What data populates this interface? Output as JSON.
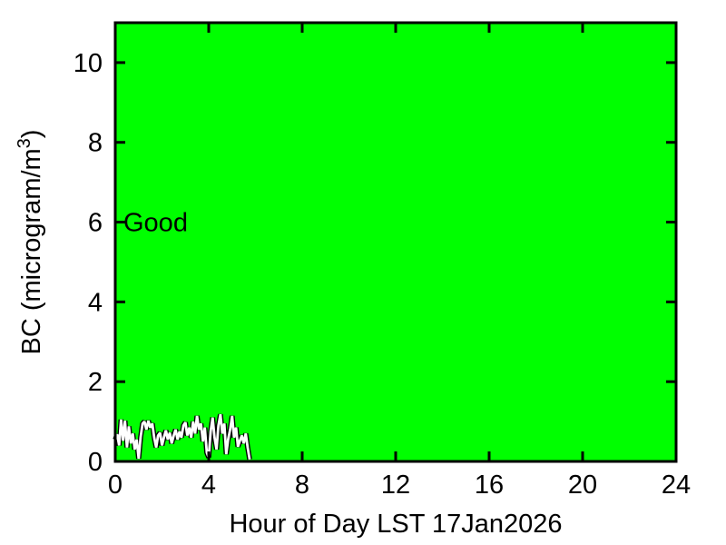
{
  "window": {
    "background_color": "#ffffff"
  },
  "chart_data": {
    "type": "line",
    "title": "",
    "xlabel": "Hour of Day LST 17Jan2026",
    "ylabel": "BC (microgram/m³)",
    "ylabel_parts": [
      {
        "text": "BC (microgram/m",
        "superscript": false
      },
      {
        "text": "3",
        "superscript": true
      },
      {
        "text": ")",
        "superscript": false
      }
    ],
    "xlim": [
      0,
      24
    ],
    "ylim": [
      0,
      11
    ],
    "x_ticks": [
      0,
      4,
      8,
      12,
      16,
      20,
      24
    ],
    "y_ticks": [
      0,
      2,
      4,
      6,
      8,
      10
    ],
    "grid": false,
    "legend_position": "none",
    "plot_background_color": "#00ff00",
    "axis_color": "#000000",
    "annotations": [
      {
        "text": "Good",
        "x": 0.35,
        "y": 6,
        "color": "#000000"
      }
    ],
    "series": [
      {
        "name": "BC concentration",
        "color": "#ffffff",
        "outline_color": "#000000",
        "x": [
          0.0,
          0.083,
          0.167,
          0.25,
          0.333,
          0.417,
          0.5,
          0.583,
          0.667,
          0.75,
          0.833,
          0.917,
          1.0,
          1.083,
          1.167,
          1.25,
          1.333,
          1.417,
          1.5,
          1.583,
          1.667,
          1.75,
          1.833,
          1.917,
          2.0,
          2.083,
          2.167,
          2.25,
          2.333,
          2.417,
          2.5,
          2.583,
          2.667,
          2.75,
          2.833,
          2.917,
          3.0,
          3.083,
          3.167,
          3.25,
          3.333,
          3.417,
          3.5,
          3.583,
          3.667,
          3.75,
          3.833,
          3.917,
          4.0,
          4.083,
          4.167,
          4.25,
          4.333,
          4.417,
          4.5,
          4.583,
          4.667,
          4.75,
          4.833,
          4.917,
          5.0,
          5.083,
          5.167,
          5.25,
          5.333,
          5.417,
          5.5,
          5.583,
          5.667,
          5.75
        ],
        "y": [
          0.55,
          0.68,
          0.4,
          1.05,
          0.52,
          1.02,
          0.35,
          0.88,
          0.45,
          0.7,
          0.3,
          0.55,
          0.07,
          0.6,
          0.95,
          1.0,
          0.8,
          1.02,
          0.85,
          0.95,
          0.6,
          0.35,
          0.65,
          0.72,
          0.4,
          0.6,
          0.78,
          0.55,
          0.72,
          0.45,
          0.65,
          0.8,
          0.55,
          0.75,
          0.6,
          0.9,
          0.98,
          0.65,
          0.85,
          0.6,
          1.0,
          0.7,
          1.14,
          0.8,
          0.95,
          0.5,
          0.85,
          0.22,
          0.1,
          0.75,
          1.1,
          0.6,
          0.3,
          0.9,
          1.18,
          0.7,
          0.95,
          0.18,
          0.55,
          0.8,
          1.14,
          0.6,
          0.85,
          0.37,
          0.52,
          0.65,
          0.45,
          0.7,
          0.35,
          0.05
        ]
      }
    ]
  }
}
